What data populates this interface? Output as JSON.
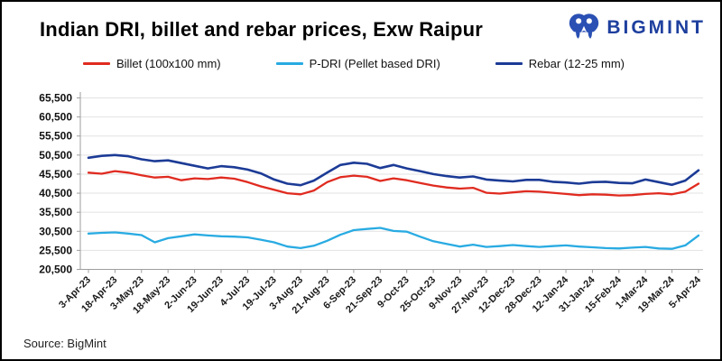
{
  "header": {
    "title": "Indian DRI, billet and rebar prices, Exw Raipur",
    "logo_text": "BIGMINT",
    "brand_color": "#1e3f9e",
    "logo_icon_color": "#2a50b4"
  },
  "footer": {
    "source": "Source: BigMint"
  },
  "chart_data": {
    "type": "line",
    "title": "Indian DRI, billet and rebar prices, Exw Raipur",
    "xlabel": "",
    "ylabel": "",
    "ylim": [
      20500,
      65500
    ],
    "y_step": 5000,
    "grid": true,
    "legend_position": "top",
    "y_tick_labels": [
      "65,500",
      "60,500",
      "55,500",
      "50,500",
      "45,500",
      "40,500",
      "35,500",
      "30,500",
      "25,500",
      "20,500"
    ],
    "x_labels": [
      "3-Apr-23",
      "",
      "18-Apr-23",
      "",
      "3-May-23",
      "",
      "18-May-23",
      "",
      "2-Jun-23",
      "",
      "19-Jun-23",
      "",
      "4-Jul-23",
      "",
      "19-Jul-23",
      "",
      "3-Aug-23",
      "",
      "21-Aug-23",
      "",
      "6-Sep-23",
      "",
      "21-Sep-23",
      "",
      "9-Oct-23",
      "",
      "25-Oct-23",
      "",
      "9-Nov-23",
      "",
      "27-Nov-23",
      "",
      "12-Dec-23",
      "",
      "28-Dec-23",
      "",
      "12-Jan-24",
      "",
      "31-Jan-24",
      "",
      "15-Feb-24",
      "",
      "1-Mar-24",
      "",
      "19-Mar-24",
      "",
      "5-Apr-24"
    ],
    "series": [
      {
        "name": "Billet (100x100 mm)",
        "color": "#e02b20",
        "width": 2.3,
        "values": [
          45900,
          45600,
          46300,
          45900,
          45200,
          44600,
          44800,
          43900,
          44400,
          44200,
          44600,
          44300,
          43400,
          42300,
          41400,
          40500,
          40200,
          41200,
          43400,
          44700,
          45100,
          44800,
          43700,
          44400,
          43900,
          43200,
          42500,
          42000,
          41700,
          41900,
          40600,
          40400,
          40700,
          41000,
          40900,
          40600,
          40300,
          40000,
          40200,
          40100,
          39900,
          40000,
          40300,
          40500,
          40200,
          40900,
          43000
        ]
      },
      {
        "name": "P-DRI (Pellet based DRI)",
        "color": "#29abe2",
        "width": 2.3,
        "values": [
          29900,
          30100,
          30200,
          29900,
          29500,
          27600,
          28700,
          29200,
          29700,
          29400,
          29200,
          29100,
          28900,
          28300,
          27600,
          26500,
          26100,
          26700,
          28000,
          29600,
          30800,
          31100,
          31400,
          30600,
          30400,
          29100,
          27900,
          27200,
          26500,
          27000,
          26400,
          26600,
          26900,
          26600,
          26400,
          26600,
          26800,
          26500,
          26300,
          26100,
          26000,
          26200,
          26400,
          26000,
          25900,
          26800,
          29400
        ]
      },
      {
        "name": "Rebar (12-25 mm)",
        "color": "#1c3b96",
        "width": 2.6,
        "values": [
          49800,
          50300,
          50500,
          50200,
          49400,
          48900,
          49100,
          48400,
          47700,
          47000,
          47600,
          47300,
          46700,
          45700,
          44100,
          43000,
          42600,
          43800,
          45900,
          47900,
          48500,
          48200,
          47100,
          47900,
          47000,
          46300,
          45500,
          45000,
          44600,
          44900,
          44100,
          43800,
          43600,
          44000,
          44000,
          43500,
          43300,
          43000,
          43400,
          43500,
          43200,
          43100,
          44100,
          43400,
          42700,
          43800,
          46500
        ]
      }
    ]
  }
}
